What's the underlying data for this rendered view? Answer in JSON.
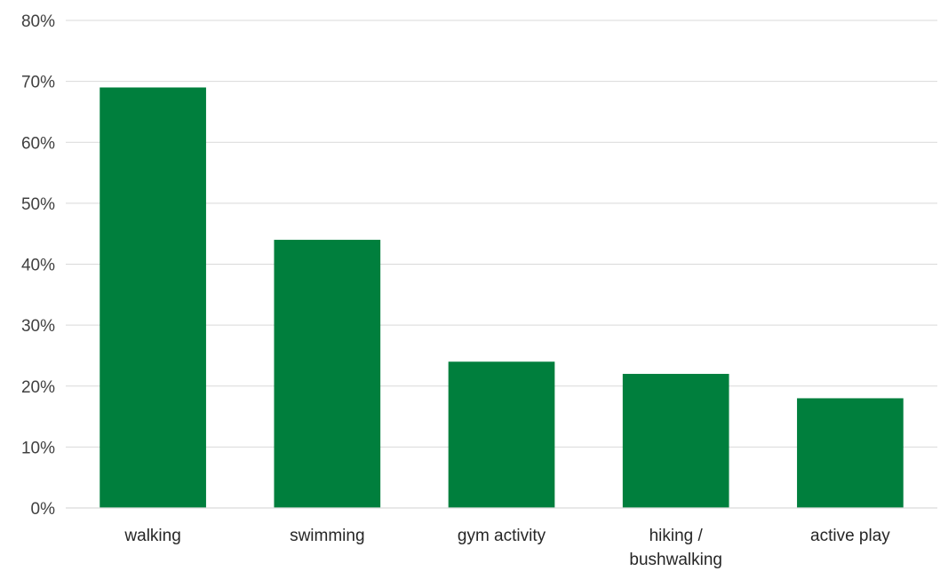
{
  "chart_data": {
    "type": "bar",
    "categories": [
      "walking",
      "swimming",
      "gym activity",
      "hiking / bushwalking",
      "active play"
    ],
    "category_lines": [
      [
        "walking"
      ],
      [
        "swimming"
      ],
      [
        "gym activity"
      ],
      [
        "hiking /",
        "bushwalking"
      ],
      [
        "active play"
      ]
    ],
    "values": [
      69,
      44,
      24,
      22,
      18
    ],
    "unit": "%",
    "ylim": [
      0,
      80
    ],
    "yticks": [
      0,
      10,
      20,
      30,
      40,
      50,
      60,
      70,
      80
    ],
    "ytick_labels": [
      "0%",
      "10%",
      "20%",
      "30%",
      "40%",
      "50%",
      "60%",
      "70%",
      "80%"
    ],
    "title": "",
    "xlabel": "",
    "ylabel": "",
    "grid": true,
    "legend": "none",
    "bar_color": "#007F3D"
  }
}
